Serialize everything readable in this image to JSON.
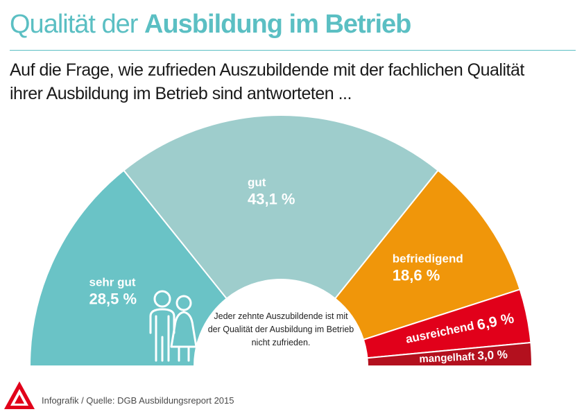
{
  "title": {
    "light": "Qualität der",
    "bold": "Ausbildung im Betrieb"
  },
  "subtitle": {
    "line1": "Auf die Frage, wie zufrieden Auszubildende mit der fachlichen Qualität",
    "line2": "ihrer Ausbildung im Betrieb sind antworteten ..."
  },
  "chart_data": {
    "type": "pie",
    "subtype": "half-donut",
    "slices": [
      {
        "label": "sehr gut",
        "value": 28.5,
        "value_label": "28,5 %",
        "color": "#6ac3c6"
      },
      {
        "label": "gut",
        "value": 43.1,
        "value_label": "43,1 %",
        "color": "#9ecdcc"
      },
      {
        "label": "befriedigend",
        "value": 18.6,
        "value_label": "18,6 %",
        "color": "#f0960a"
      },
      {
        "label": "ausreichend",
        "value": 6.9,
        "value_label": "6,9 %",
        "color": "#e1001a"
      },
      {
        "label": "mangelhaft",
        "value": 3.0,
        "value_label": "3,0 %",
        "color": "#b3101e"
      }
    ],
    "annotation": {
      "line1": "Jeder zehnte Auszubildende ist mit",
      "line2": "der Qualität der Ausbildung im Betrieb",
      "line3": "nicht zufrieden."
    }
  },
  "footer": {
    "source": "Infografik / Quelle:  DGB Ausbildungsreport 2015"
  },
  "icons": {
    "people": "people-icon",
    "logo": "ig-metall-logo"
  }
}
